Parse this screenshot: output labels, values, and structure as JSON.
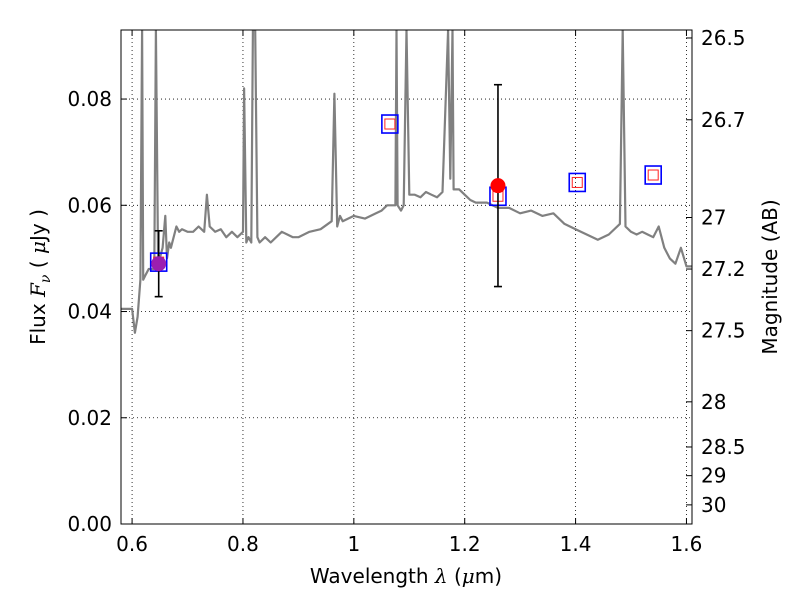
{
  "chart_data": {
    "type": "line",
    "title": "",
    "xlabel": "Wavelength  λ (μm)",
    "ylabel": "Flux  F_ν  ( μJy )",
    "y2label": "Magnitude (AB)",
    "xlim": [
      0.58,
      1.61
    ],
    "ylim": [
      0.0,
      0.093
    ],
    "grid": true,
    "x_ticks": [
      0.6,
      0.8,
      1.0,
      1.2,
      1.4,
      1.6
    ],
    "x_tick_labels": [
      "0.6",
      "0.8",
      "1",
      "1.2",
      "1.4",
      "1.6"
    ],
    "y_ticks": [
      0.0,
      0.02,
      0.04,
      0.06,
      0.08
    ],
    "y_tick_labels": [
      "0.00",
      "0.02",
      "0.04",
      "0.06",
      "0.08"
    ],
    "y2_ticks": [
      {
        "label": "26.5",
        "flux": 0.0915
      },
      {
        "label": "26.7",
        "flux": 0.0761
      },
      {
        "label": "27",
        "flux": 0.0577
      },
      {
        "label": "27.2",
        "flux": 0.048
      },
      {
        "label": "27.5",
        "flux": 0.0364
      },
      {
        "label": "28",
        "flux": 0.023
      },
      {
        "label": "28.5",
        "flux": 0.0145
      },
      {
        "label": "29",
        "flux": 0.0091
      },
      {
        "label": "30",
        "flux": 0.0036
      }
    ],
    "series": [
      {
        "kind": "spectrum",
        "color": "#808080",
        "x": [
          0.58,
          0.59,
          0.6,
          0.605,
          0.61,
          0.615,
          0.618,
          0.62,
          0.625,
          0.63,
          0.64,
          0.643,
          0.647,
          0.65,
          0.655,
          0.66,
          0.663,
          0.667,
          0.67,
          0.68,
          0.685,
          0.69,
          0.7,
          0.71,
          0.72,
          0.73,
          0.735,
          0.74,
          0.75,
          0.76,
          0.77,
          0.78,
          0.79,
          0.8,
          0.802,
          0.806,
          0.81,
          0.815,
          0.818,
          0.822,
          0.826,
          0.83,
          0.84,
          0.85,
          0.86,
          0.87,
          0.88,
          0.89,
          0.9,
          0.92,
          0.94,
          0.96,
          0.965,
          0.97,
          0.975,
          0.98,
          1.0,
          1.02,
          1.04,
          1.05,
          1.06,
          1.075,
          1.077,
          1.079,
          1.085,
          1.09,
          1.095,
          1.1,
          1.11,
          1.12,
          1.13,
          1.14,
          1.15,
          1.16,
          1.17,
          1.174,
          1.178,
          1.18,
          1.19,
          1.2,
          1.21,
          1.22,
          1.24,
          1.26,
          1.28,
          1.3,
          1.32,
          1.34,
          1.36,
          1.38,
          1.4,
          1.42,
          1.44,
          1.46,
          1.48,
          1.485,
          1.49,
          1.5,
          1.51,
          1.52,
          1.53,
          1.54,
          1.55,
          1.56,
          1.57,
          1.58,
          1.59,
          1.6,
          1.61
        ],
        "y": [
          0.0405,
          0.0405,
          0.0405,
          0.036,
          0.039,
          0.046,
          0.093,
          0.046,
          0.047,
          0.048,
          0.048,
          0.093,
          0.049,
          0.05,
          0.052,
          0.058,
          0.05,
          0.053,
          0.052,
          0.056,
          0.055,
          0.0555,
          0.055,
          0.055,
          0.056,
          0.055,
          0.062,
          0.056,
          0.055,
          0.0555,
          0.054,
          0.055,
          0.054,
          0.055,
          0.082,
          0.053,
          0.054,
          0.053,
          0.093,
          0.093,
          0.054,
          0.053,
          0.054,
          0.053,
          0.054,
          0.055,
          0.0545,
          0.054,
          0.054,
          0.055,
          0.0555,
          0.057,
          0.081,
          0.056,
          0.058,
          0.057,
          0.058,
          0.0575,
          0.0585,
          0.059,
          0.06,
          0.06,
          0.093,
          0.06,
          0.059,
          0.06,
          0.093,
          0.062,
          0.062,
          0.0615,
          0.0625,
          0.062,
          0.0615,
          0.0625,
          0.093,
          0.065,
          0.093,
          0.063,
          0.063,
          0.062,
          0.061,
          0.0605,
          0.0605,
          0.0595,
          0.0595,
          0.0585,
          0.059,
          0.058,
          0.0585,
          0.0565,
          0.0555,
          0.0545,
          0.0535,
          0.0545,
          0.0565,
          0.093,
          0.056,
          0.055,
          0.0545,
          0.055,
          0.0545,
          0.054,
          0.056,
          0.052,
          0.05,
          0.049,
          0.052,
          0.0485,
          0.0485
        ]
      }
    ],
    "model_points": [
      {
        "x": 0.648,
        "y": 0.0493
      },
      {
        "x": 1.065,
        "y": 0.0753
      },
      {
        "x": 1.26,
        "y": 0.0617
      },
      {
        "x": 1.403,
        "y": 0.0643
      },
      {
        "x": 1.54,
        "y": 0.0657
      }
    ],
    "observed_points": [
      {
        "x": 0.648,
        "y": 0.049,
        "yerr_low": 0.0062,
        "yerr_high": 0.0062,
        "color": "#9b1fb0"
      },
      {
        "x": 1.26,
        "y": 0.0637,
        "yerr_low": 0.019,
        "yerr_high": 0.019,
        "color": "#ff0000"
      }
    ]
  }
}
